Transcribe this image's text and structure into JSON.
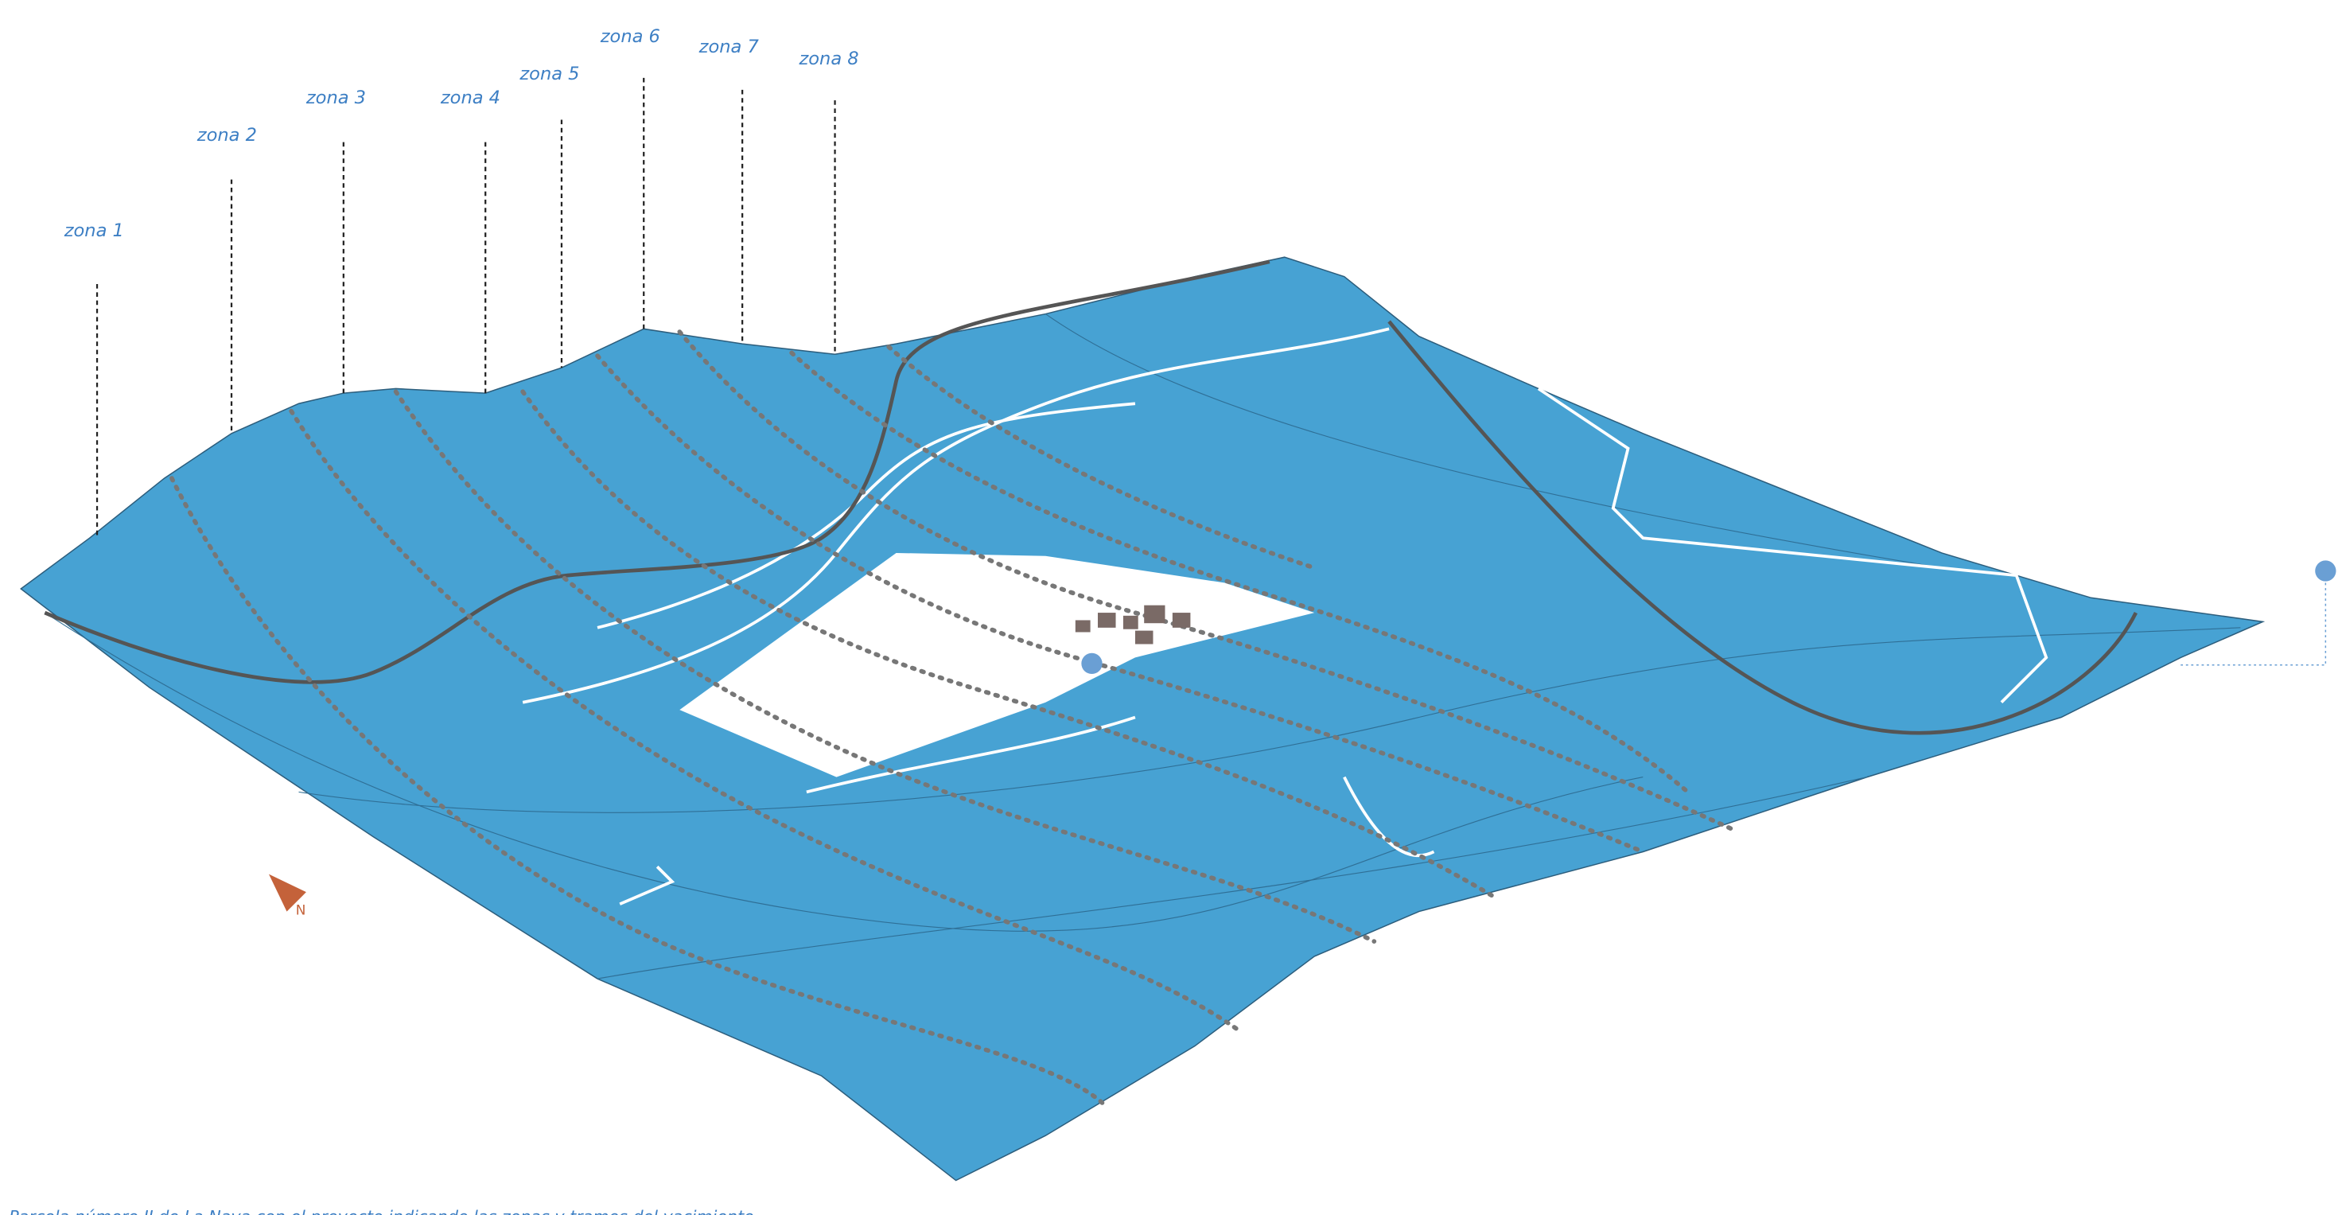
{
  "zones": [
    "zona 1",
    "zona 2",
    "zona 3",
    "zona 4",
    "zona 5",
    "zona 6",
    "zona 7",
    "zona 8"
  ],
  "caption": "Parcela número II de La Nava con el proyecto indicando las zonas y tramos del yacimiento"
}
